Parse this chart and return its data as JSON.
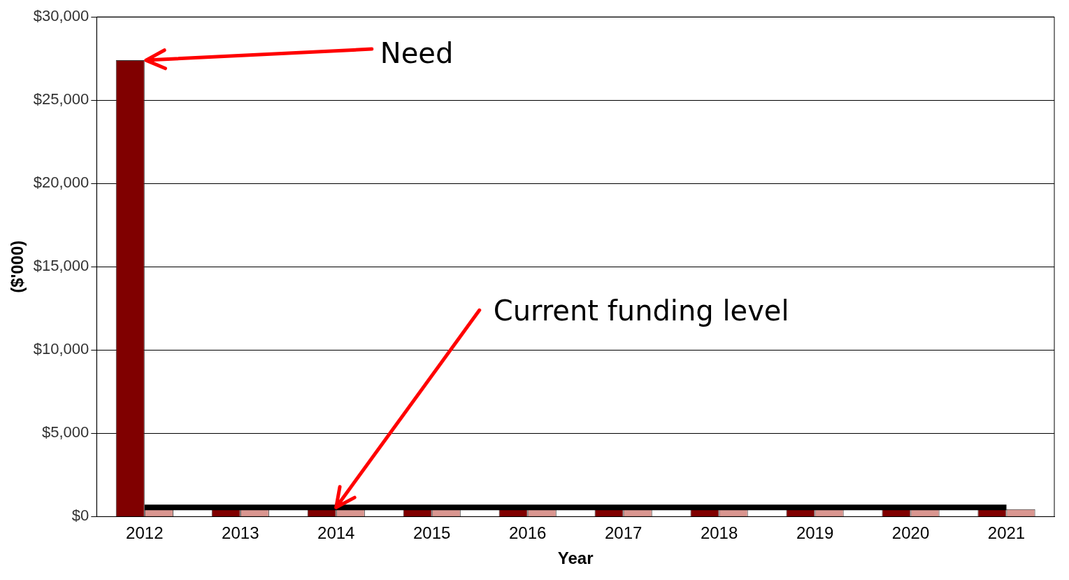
{
  "chart_data": {
    "type": "bar",
    "xlabel": "Year",
    "ylabel": "($'000)",
    "categories": [
      "2012",
      "2013",
      "2014",
      "2015",
      "2016",
      "2017",
      "2018",
      "2019",
      "2020",
      "2021"
    ],
    "series": [
      {
        "color": "#800000",
        "values": [
          27400,
          450,
          450,
          450,
          450,
          450,
          450,
          450,
          450,
          450
        ]
      },
      {
        "color": "#d99690",
        "values": [
          450,
          450,
          450,
          450,
          450,
          450,
          450,
          450,
          450,
          450
        ]
      },
      {
        "type": "line",
        "color": "#000000",
        "values": [
          550,
          550,
          550,
          550,
          550,
          550,
          550,
          550,
          550,
          550
        ]
      }
    ],
    "ylim": [
      0,
      30000
    ],
    "yticks": [
      {
        "value": 0,
        "label": "$0"
      },
      {
        "value": 5000,
        "label": "$5,000"
      },
      {
        "value": 10000,
        "label": "$10,000"
      },
      {
        "value": 15000,
        "label": "$15,000"
      },
      {
        "value": 20000,
        "label": "$20,000"
      },
      {
        "value": 25000,
        "label": "$25,000"
      },
      {
        "value": 30000,
        "label": "$30,000"
      }
    ],
    "grid": "y",
    "legend": false,
    "marker": "none",
    "annotations": [
      {
        "text": "Need",
        "x": "2012",
        "y": 27400
      },
      {
        "text": "Current funding level",
        "x": "2014",
        "y": 550
      }
    ]
  }
}
